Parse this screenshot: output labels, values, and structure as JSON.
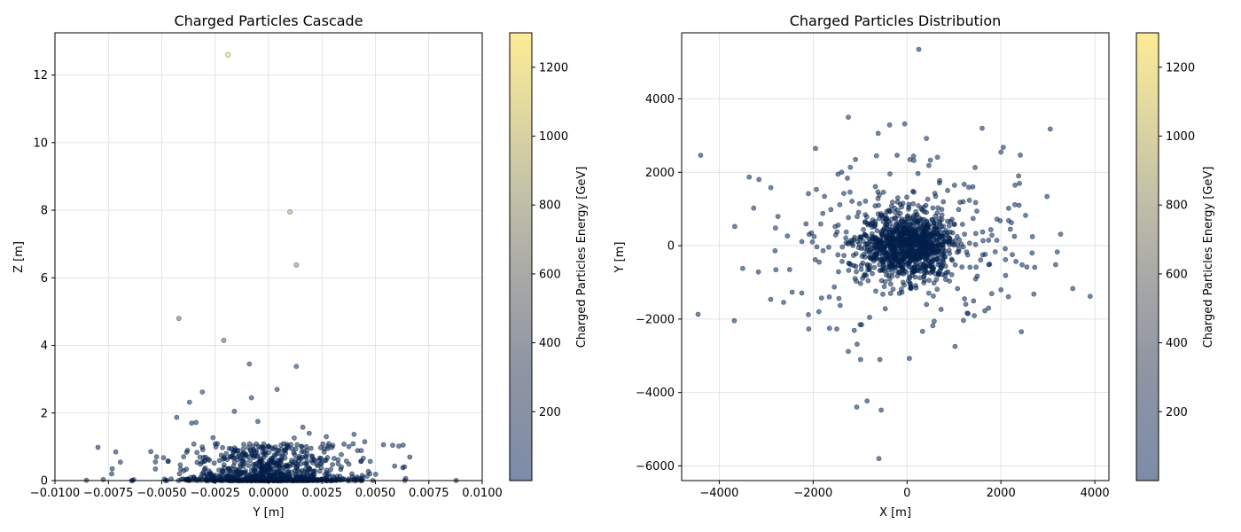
{
  "chart_data": [
    {
      "type": "scatter",
      "title": "Charged Particles Cascade",
      "xlabel": "Y [m]",
      "ylabel": "Z [m]",
      "xlim": [
        -0.01,
        0.01
      ],
      "ylim": [
        0,
        13.25
      ],
      "xticks": [
        -0.01,
        -0.0075,
        -0.005,
        -0.0025,
        0.0,
        0.0025,
        0.005,
        0.0075,
        0.01
      ],
      "xtick_labels": [
        "−0.0100",
        "−0.0075",
        "−0.0050",
        "−0.0025",
        "0.0000",
        "0.0025",
        "0.0050",
        "0.0075",
        "0.0100"
      ],
      "yticks": [
        0,
        2,
        4,
        6,
        8,
        10,
        12
      ],
      "ytick_labels": [
        "0",
        "2",
        "4",
        "6",
        "8",
        "10",
        "12"
      ],
      "grid": true,
      "colorbar": {
        "label": "Charged Particles Energy [GeV]",
        "range": [
          0,
          1300
        ],
        "ticks": [
          200,
          400,
          600,
          800,
          1000,
          1200
        ],
        "tick_labels": [
          "200",
          "400",
          "600",
          "800",
          "1000",
          "1200"
        ],
        "colormap": "cividis"
      },
      "points": [
        {
          "x": -0.0019,
          "y": 12.6,
          "c": 1300
        },
        {
          "x": 0.001,
          "y": 7.95,
          "c": 850
        },
        {
          "x": 0.0013,
          "y": 6.38,
          "c": 650
        },
        {
          "x": -0.0042,
          "y": 4.8,
          "c": 420
        },
        {
          "x": -0.0021,
          "y": 4.15,
          "c": 350
        },
        {
          "x": -0.0009,
          "y": 3.45,
          "c": 100
        },
        {
          "x": 0.0013,
          "y": 3.38,
          "c": 90
        },
        {
          "x": 0.0004,
          "y": 2.7,
          "c": 80
        },
        {
          "x": -0.0031,
          "y": 2.62,
          "c": 70
        },
        {
          "x": -0.0008,
          "y": 2.45,
          "c": 60
        },
        {
          "x": -0.0037,
          "y": 2.32,
          "c": 50
        },
        {
          "x": -0.0016,
          "y": 2.05,
          "c": 40
        },
        {
          "x": -0.0043,
          "y": 1.87,
          "c": 30
        },
        {
          "x": -0.0036,
          "y": 1.7,
          "c": 30
        },
        {
          "x": -0.0034,
          "y": 1.72,
          "c": 30
        },
        {
          "x": -0.0005,
          "y": 1.75,
          "c": 20
        },
        {
          "x": 0.0016,
          "y": 1.58,
          "c": 20
        },
        {
          "x": 0.0027,
          "y": 1.3,
          "c": 20
        },
        {
          "x": 0.004,
          "y": 1.37,
          "c": 20
        },
        {
          "x": 0.0045,
          "y": 1.15,
          "c": 20
        },
        {
          "x": 0.0061,
          "y": 1.02,
          "c": 20
        },
        {
          "x": 0.0063,
          "y": 1.05,
          "c": 20
        },
        {
          "x": -0.0026,
          "y": 1.27,
          "c": 20
        },
        {
          "x": 0.0019,
          "y": 1.4,
          "c": 20
        },
        {
          "x": 0.0012,
          "y": 1.26,
          "c": 20
        },
        {
          "x": -0.0035,
          "y": 1.08,
          "c": 20
        },
        {
          "x": -0.0053,
          "y": 0.55,
          "c": 10
        },
        {
          "x": -0.0047,
          "y": 0.58,
          "c": 10
        }
      ],
      "cluster": {
        "center": 0.0,
        "spread": 0.0023,
        "max_y": 1.1,
        "count": 900,
        "c": 5
      }
    },
    {
      "type": "scatter",
      "title": "Charged Particles Distribution",
      "xlabel": "X [m]",
      "ylabel": "Y [m]",
      "xlim": [
        -4800,
        4300
      ],
      "ylim": [
        -6400,
        5800
      ],
      "xticks": [
        -4000,
        -2000,
        0,
        2000,
        4000
      ],
      "xtick_labels": [
        "−4000",
        "−2000",
        "0",
        "2000",
        "4000"
      ],
      "yticks": [
        -6000,
        -4000,
        -2000,
        0,
        2000,
        4000
      ],
      "ytick_labels": [
        "−6000",
        "−4000",
        "−2000",
        "0",
        "2000",
        "4000"
      ],
      "grid": true,
      "colorbar": {
        "label": "Charged Particles Energy [GeV]",
        "range": [
          0,
          1300
        ],
        "ticks": [
          200,
          400,
          600,
          800,
          1000,
          1200
        ],
        "tick_labels": [
          "200",
          "400",
          "600",
          "800",
          "1000",
          "1200"
        ],
        "colormap": "cividis"
      },
      "points": [
        {
          "x": 250,
          "y": 5350,
          "c": 20
        },
        {
          "x": -1250,
          "y": 3500,
          "c": 20
        },
        {
          "x": -50,
          "y": 3320,
          "c": 20
        },
        {
          "x": 1600,
          "y": 3200,
          "c": 20
        },
        {
          "x": 3050,
          "y": 3180,
          "c": 20
        },
        {
          "x": -1950,
          "y": 2650,
          "c": 20
        },
        {
          "x": 2050,
          "y": 2680,
          "c": 20
        },
        {
          "x": 2000,
          "y": 2550,
          "c": 20
        },
        {
          "x": -650,
          "y": 2450,
          "c": 20
        },
        {
          "x": 500,
          "y": 2330,
          "c": 20
        },
        {
          "x": 1450,
          "y": 2130,
          "c": 20
        },
        {
          "x": 2300,
          "y": 1650,
          "c": 20
        },
        {
          "x": -2900,
          "y": 1580,
          "c": 20
        },
        {
          "x": -2100,
          "y": 1420,
          "c": 20
        },
        {
          "x": -3500,
          "y": -620,
          "c": 20
        },
        {
          "x": -2500,
          "y": -650,
          "c": 20
        },
        {
          "x": -4450,
          "y": -1870,
          "c": 20
        },
        {
          "x": 3200,
          "y": -170,
          "c": 20
        },
        {
          "x": 3900,
          "y": -1380,
          "c": 20
        },
        {
          "x": 2700,
          "y": -1320,
          "c": 20
        },
        {
          "x": 2450,
          "y": -520,
          "c": 20
        },
        {
          "x": -2100,
          "y": -1880,
          "c": 20
        },
        {
          "x": -1250,
          "y": -2880,
          "c": 20
        },
        {
          "x": 50,
          "y": -3070,
          "c": 20
        },
        {
          "x": -850,
          "y": -4230,
          "c": 20
        },
        {
          "x": -550,
          "y": -4480,
          "c": 20
        },
        {
          "x": -600,
          "y": -5800,
          "c": 20
        },
        {
          "x": -1650,
          "y": -2250,
          "c": 20
        },
        {
          "x": -1000,
          "y": -2150,
          "c": 20
        },
        {
          "x": 1300,
          "y": -1850,
          "c": 20
        },
        {
          "x": 2000,
          "y": -1200,
          "c": 20
        },
        {
          "x": -2800,
          "y": 480,
          "c": 20
        },
        {
          "x": 2200,
          "y": 450,
          "c": 20
        }
      ],
      "cluster": {
        "center_x": 0,
        "center_y": 0,
        "spread": 650,
        "count": 1200,
        "c": 10
      }
    }
  ]
}
